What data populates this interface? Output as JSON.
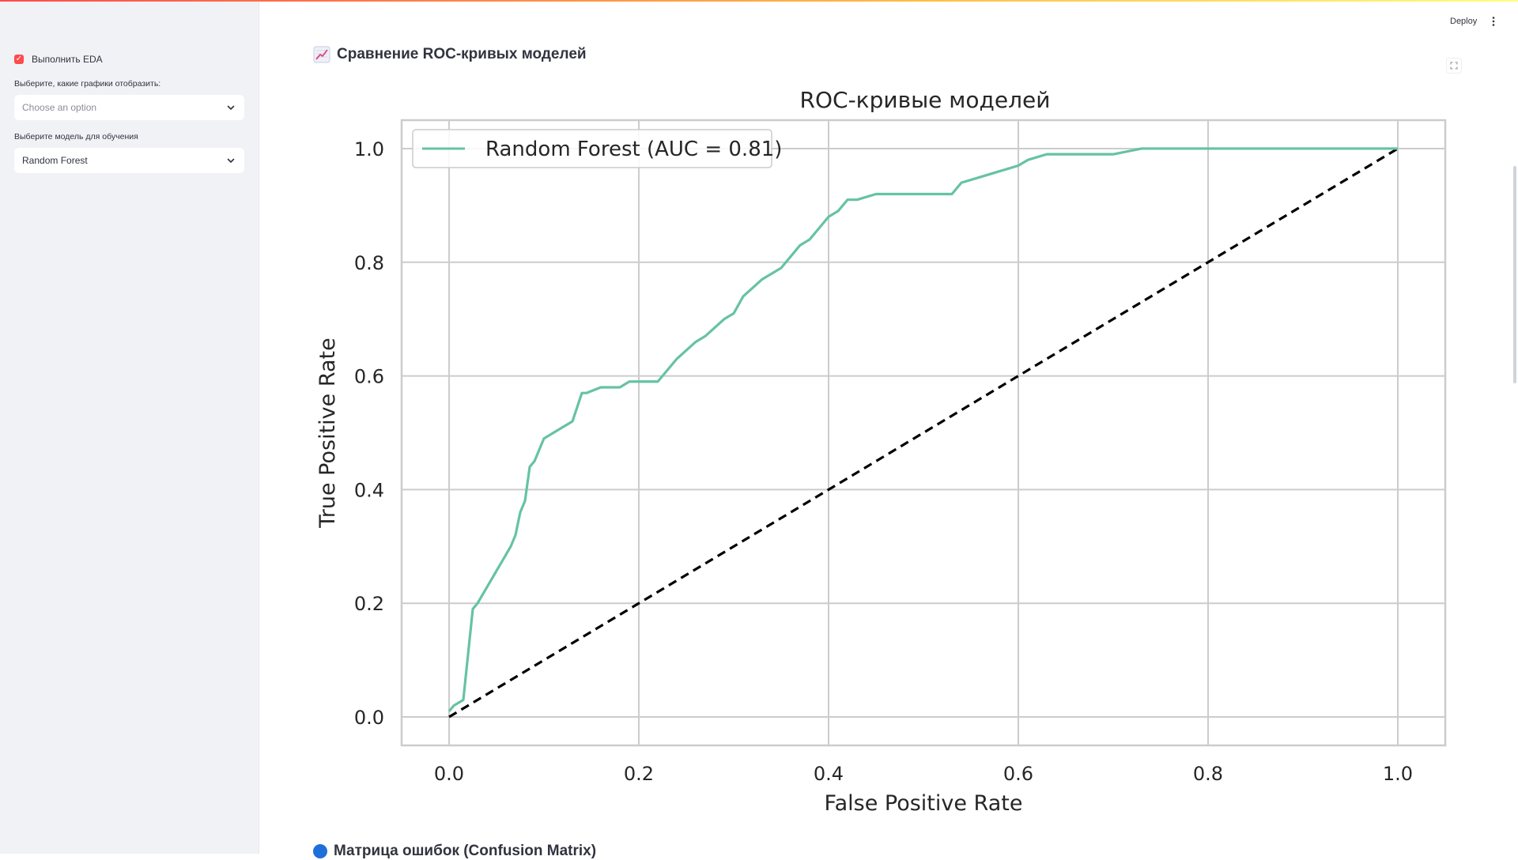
{
  "app": {
    "deploy_label": "Deploy"
  },
  "sidebar": {
    "eda_checkbox_label": "Выполнить EDA",
    "eda_checked": true,
    "plots_label": "Выберите, какие графики отобразить:",
    "plots_placeholder": "Choose an option",
    "model_label": "Выберите модель для обучения",
    "model_value": "Random Forest"
  },
  "main": {
    "section_title": "Сравнение ROC-кривых моделей",
    "next_section_title": "Матрица ошибок (Confusion Matrix)"
  },
  "colors": {
    "accent": "#ff4b4b",
    "roc_line": "#66c2a5",
    "diagonal": "#000000",
    "grid": "#cccccc"
  },
  "chart_data": {
    "type": "line",
    "title": "ROC-кривые моделей",
    "xlabel": "False Positive Rate",
    "ylabel": "True Positive Rate",
    "xlim": [
      -0.05,
      1.05
    ],
    "ylim": [
      -0.05,
      1.05
    ],
    "xticks": [
      "0.0",
      "0.2",
      "0.4",
      "0.6",
      "0.8",
      "1.0"
    ],
    "yticks": [
      "0.0",
      "0.2",
      "0.4",
      "0.6",
      "0.8",
      "1.0"
    ],
    "grid": true,
    "legend_position": "top-left",
    "series": [
      {
        "name": "Random Forest (AUC = 0.81)",
        "style": "solid",
        "x": [
          0,
          0.005,
          0.015,
          0.025,
          0.03,
          0.065,
          0.07,
          0.075,
          0.08,
          0.085,
          0.09,
          0.095,
          0.1,
          0.11,
          0.12,
          0.13,
          0.14,
          0.145,
          0.16,
          0.18,
          0.19,
          0.22,
          0.23,
          0.24,
          0.26,
          0.27,
          0.29,
          0.3,
          0.31,
          0.33,
          0.35,
          0.37,
          0.38,
          0.39,
          0.4,
          0.41,
          0.42,
          0.43,
          0.45,
          0.53,
          0.54,
          0.56,
          0.58,
          0.6,
          0.61,
          0.63,
          0.7,
          0.73,
          0.8,
          0.82,
          1.0
        ],
        "y": [
          0.01,
          0.02,
          0.03,
          0.19,
          0.2,
          0.3,
          0.32,
          0.36,
          0.38,
          0.44,
          0.45,
          0.47,
          0.49,
          0.5,
          0.51,
          0.52,
          0.57,
          0.57,
          0.58,
          0.58,
          0.59,
          0.59,
          0.61,
          0.63,
          0.66,
          0.67,
          0.7,
          0.71,
          0.74,
          0.77,
          0.79,
          0.83,
          0.84,
          0.86,
          0.88,
          0.89,
          0.91,
          0.91,
          0.92,
          0.92,
          0.94,
          0.95,
          0.96,
          0.97,
          0.98,
          0.99,
          0.99,
          1.0,
          1.0,
          1.0,
          1.0
        ]
      },
      {
        "name": "",
        "style": "dashed",
        "x": [
          0,
          1
        ],
        "y": [
          0,
          1
        ]
      }
    ]
  }
}
